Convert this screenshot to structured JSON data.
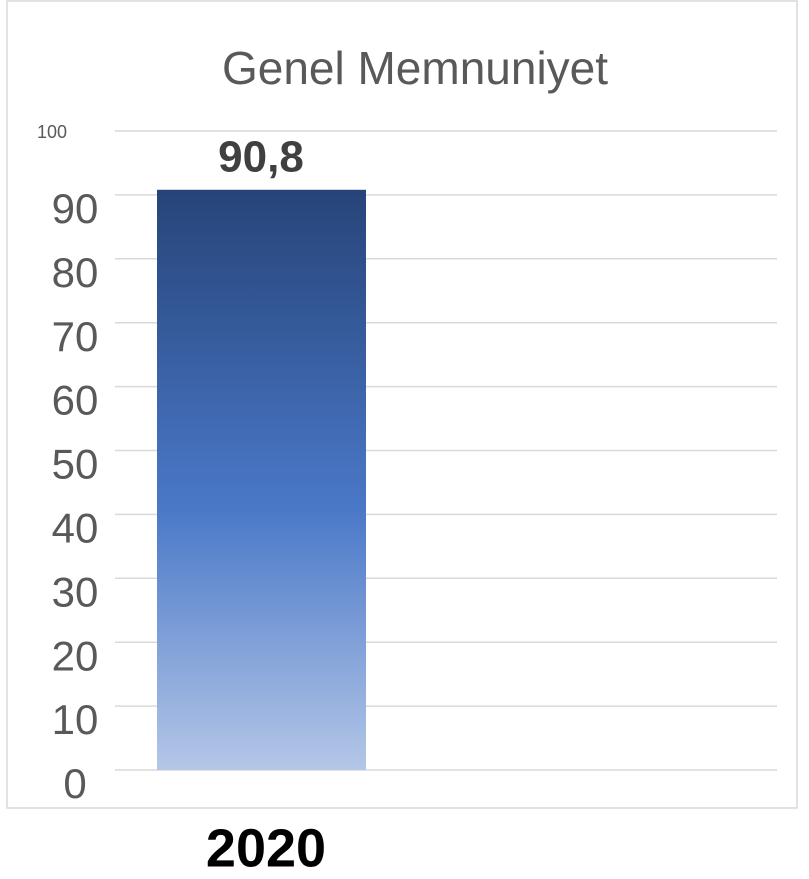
{
  "chart_data": {
    "type": "bar",
    "title": "Genel Memnuniyet",
    "categories": [
      "2020"
    ],
    "values": [
      90.8
    ],
    "value_labels": [
      "90,8"
    ],
    "ylim": [
      0,
      100
    ],
    "yticks": [
      0,
      10,
      20,
      30,
      40,
      50,
      60,
      70,
      80,
      90,
      100
    ],
    "grid": true
  }
}
